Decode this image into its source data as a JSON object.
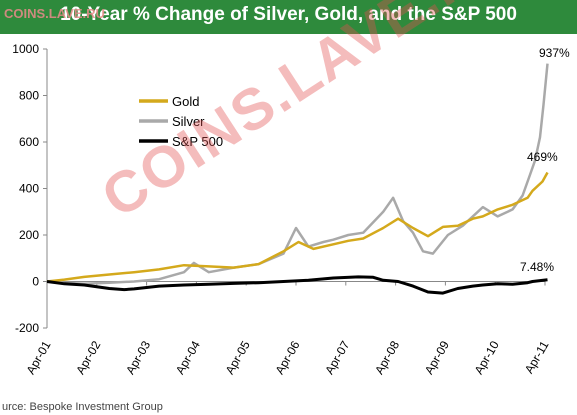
{
  "watermark": {
    "small": "COINS.LAVE.RU",
    "big": "COINS.LAVE.RU"
  },
  "source": "urce: Bespoke Investment Group",
  "chart_data": {
    "type": "line",
    "title": "10-Year % Change of Silver, Gold, and the S&P 500",
    "xlabel": "",
    "ylabel": "",
    "ylim": [
      -200,
      1000
    ],
    "yticks": [
      -200,
      0,
      200,
      400,
      600,
      800,
      1000
    ],
    "x_tick_labels": [
      "Apr-01",
      "Apr-02",
      "Apr-03",
      "Apr-04",
      "Apr-05",
      "Apr-06",
      "Apr-07",
      "Apr-08",
      "Apr-09",
      "Apr-10",
      "Apr-11"
    ],
    "grid": false,
    "legend_position": "upper-left",
    "series": [
      {
        "name": "Gold",
        "color": "#d4a91c",
        "x": [
          2001.25,
          2001.6,
          2002.0,
          2002.5,
          2003.0,
          2003.5,
          2004.0,
          2004.5,
          2005.0,
          2005.5,
          2006.0,
          2006.3,
          2006.6,
          2007.0,
          2007.3,
          2007.6,
          2008.0,
          2008.3,
          2008.6,
          2008.9,
          2009.2,
          2009.5,
          2009.8,
          2010.0,
          2010.3,
          2010.6,
          2010.9,
          2011.0,
          2011.2,
          2011.3
        ],
        "y": [
          0,
          8,
          20,
          30,
          40,
          52,
          70,
          65,
          60,
          75,
          130,
          170,
          140,
          160,
          175,
          185,
          230,
          270,
          230,
          195,
          235,
          240,
          270,
          280,
          310,
          330,
          360,
          390,
          430,
          469
        ]
      },
      {
        "name": "Silver",
        "color": "#a9a9a9",
        "x": [
          2001.25,
          2001.6,
          2002.0,
          2002.5,
          2003.0,
          2003.5,
          2004.0,
          2004.2,
          2004.5,
          2005.0,
          2005.5,
          2006.0,
          2006.25,
          2006.5,
          2006.8,
          2007.0,
          2007.3,
          2007.6,
          2008.0,
          2008.2,
          2008.4,
          2008.6,
          2008.8,
          2009.0,
          2009.3,
          2009.6,
          2009.9,
          2010.0,
          2010.3,
          2010.6,
          2010.8,
          2010.95,
          2011.05,
          2011.15,
          2011.22,
          2011.3
        ],
        "y": [
          0,
          -5,
          -10,
          -5,
          0,
          10,
          40,
          80,
          40,
          60,
          75,
          120,
          230,
          150,
          170,
          180,
          200,
          210,
          300,
          360,
          260,
          210,
          130,
          120,
          200,
          240,
          300,
          320,
          280,
          310,
          370,
          460,
          520,
          620,
          760,
          937
        ]
      },
      {
        "name": "S&P 500",
        "color": "#000000",
        "x": [
          2001.25,
          2001.6,
          2002.0,
          2002.5,
          2002.8,
          2003.0,
          2003.5,
          2004.0,
          2004.5,
          2005.0,
          2005.5,
          2006.0,
          2006.5,
          2007.0,
          2007.5,
          2007.8,
          2008.0,
          2008.3,
          2008.6,
          2008.9,
          2009.2,
          2009.5,
          2009.8,
          2010.0,
          2010.3,
          2010.6,
          2010.9,
          2011.0,
          2011.3
        ],
        "y": [
          0,
          -10,
          -15,
          -30,
          -35,
          -32,
          -20,
          -15,
          -12,
          -8,
          -5,
          0,
          5,
          15,
          20,
          18,
          5,
          0,
          -20,
          -45,
          -50,
          -30,
          -20,
          -15,
          -10,
          -12,
          -5,
          0,
          7.48
        ]
      }
    ],
    "annotations": [
      {
        "text": "937%",
        "x": 2011.3,
        "y": 937
      },
      {
        "text": "469%",
        "x": 2011.3,
        "y": 469
      },
      {
        "text": "7.48%",
        "x": 2011.3,
        "y": 7.48
      }
    ]
  }
}
